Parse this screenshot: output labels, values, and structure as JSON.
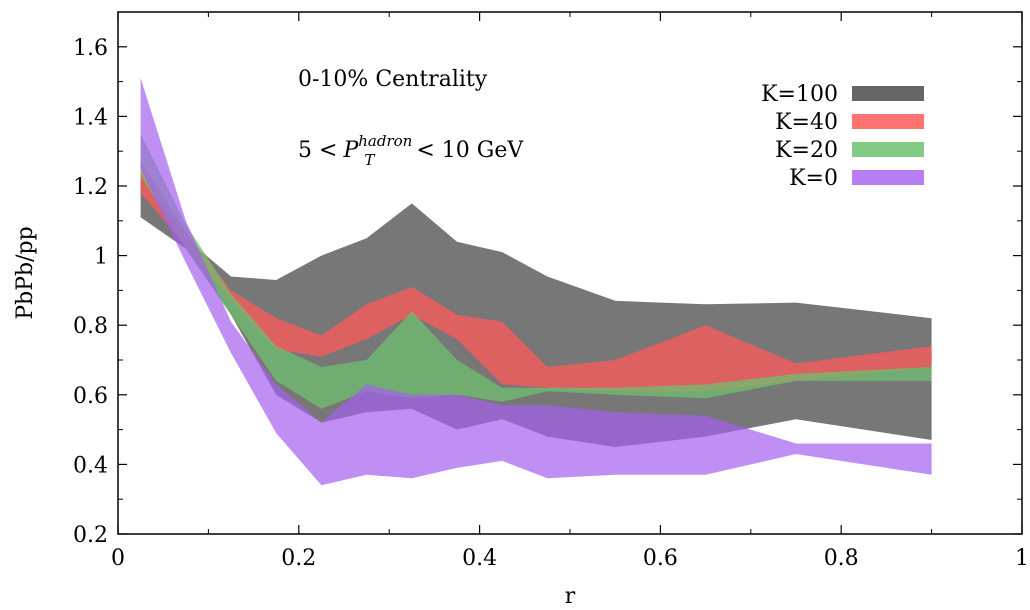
{
  "chart_data": {
    "type": "area",
    "title": "",
    "xlabel": "r",
    "ylabel": "PbPb/pp",
    "xlim": [
      0,
      1
    ],
    "ylim": [
      0.2,
      1.7
    ],
    "x_ticks": [
      "0",
      "0.2",
      "0.4",
      "0.6",
      "0.8",
      "1"
    ],
    "y_ticks": [
      "0.2",
      "0.4",
      "0.6",
      "0.8",
      "1",
      "1.2",
      "1.4",
      "1.6"
    ],
    "annotation_centrality": "0-10% Centrality",
    "annotation_pt": {
      "lo": "5 <",
      "p": "P",
      "sub": "T",
      "sup": "hadron",
      "hi": "< 10 GeV"
    },
    "grid": false,
    "legend_position": "top-right",
    "x": [
      0.025,
      0.075,
      0.125,
      0.175,
      0.225,
      0.275,
      0.325,
      0.375,
      0.425,
      0.475,
      0.55,
      0.65,
      0.75,
      0.9
    ],
    "series": [
      {
        "name": "K=100",
        "color": "#555555",
        "opacity": 0.8,
        "upper": [
          1.24,
          1.05,
          0.94,
          0.93,
          1.0,
          1.05,
          1.15,
          1.04,
          1.01,
          0.94,
          0.87,
          0.86,
          0.865,
          0.82
        ],
        "lower": [
          1.11,
          1.02,
          0.83,
          0.6,
          0.52,
          0.55,
          0.56,
          0.5,
          0.53,
          0.48,
          0.45,
          0.48,
          0.53,
          0.47
        ]
      },
      {
        "name": "K=40",
        "color": "#ff5a5a",
        "opacity": 0.75,
        "upper": [
          1.27,
          1.07,
          0.9,
          0.82,
          0.77,
          0.86,
          0.91,
          0.83,
          0.81,
          0.68,
          0.7,
          0.8,
          0.69,
          0.74
        ],
        "lower": [
          1.18,
          1.03,
          0.87,
          0.73,
          0.71,
          0.76,
          0.83,
          0.76,
          0.63,
          0.62,
          0.61,
          0.61,
          0.64,
          0.68
        ]
      },
      {
        "name": "K=20",
        "color": "#6fbf6f",
        "opacity": 0.75,
        "upper": [
          1.35,
          1.09,
          0.89,
          0.74,
          0.68,
          0.7,
          0.84,
          0.7,
          0.62,
          0.62,
          0.62,
          0.63,
          0.66,
          0.68
        ],
        "lower": [
          1.23,
          1.02,
          0.83,
          0.64,
          0.56,
          0.61,
          0.59,
          0.6,
          0.58,
          0.61,
          0.6,
          0.59,
          0.64,
          0.64
        ]
      },
      {
        "name": "K=0",
        "color": "#a45ff0",
        "opacity": 0.7,
        "upper": [
          1.51,
          1.1,
          0.81,
          0.63,
          0.52,
          0.63,
          0.6,
          0.6,
          0.57,
          0.57,
          0.55,
          0.54,
          0.46,
          0.46
        ],
        "lower": [
          1.25,
          0.98,
          0.72,
          0.49,
          0.34,
          0.37,
          0.36,
          0.39,
          0.41,
          0.36,
          0.37,
          0.37,
          0.43,
          0.37
        ]
      }
    ]
  }
}
